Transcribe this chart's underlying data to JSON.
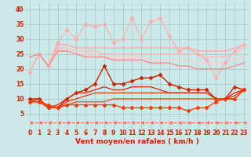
{
  "x": [
    0,
    1,
    2,
    3,
    4,
    5,
    6,
    7,
    8,
    9,
    10,
    11,
    12,
    13,
    14,
    15,
    16,
    17,
    18,
    19,
    20,
    21,
    22,
    23
  ],
  "background_color": "#cce8e8",
  "grid_color": "#aacccc",
  "xlabel": "Vent moyen/en rafales ( km/h )",
  "xlabel_color": "#cc2200",
  "xlabel_fontsize": 6.5,
  "tick_color": "#cc2200",
  "tick_fontsize": 5.5,
  "ylim": [
    0,
    42
  ],
  "yticks": [
    5,
    10,
    15,
    20,
    25,
    30,
    35,
    40
  ],
  "lines": [
    {
      "y": [
        19,
        25,
        21,
        28,
        28,
        27,
        27,
        27,
        27,
        27,
        27,
        27,
        27,
        27,
        27,
        27,
        27,
        27,
        26,
        26,
        26,
        26,
        27,
        28
      ],
      "color": "#ffaaaa",
      "lw": 1.0,
      "marker": null
    },
    {
      "y": [
        19,
        25,
        21,
        27,
        27,
        26,
        26,
        26,
        25,
        25,
        25,
        25,
        25,
        25,
        25,
        25,
        25,
        25,
        25,
        24,
        24,
        24,
        25,
        27
      ],
      "color": "#ffbbbb",
      "lw": 1.0,
      "marker": null
    },
    {
      "y": [
        19,
        25,
        21,
        26,
        26,
        25,
        25,
        25,
        24,
        24,
        24,
        24,
        24,
        23,
        23,
        23,
        23,
        23,
        22,
        22,
        22,
        22,
        23,
        24
      ],
      "color": "#ffcccc",
      "lw": 1.0,
      "marker": null
    },
    {
      "y": [
        19,
        25,
        21,
        29,
        33,
        30,
        35,
        34,
        35,
        29,
        30,
        37,
        30,
        36,
        37,
        31,
        26,
        27,
        25,
        23,
        17,
        22,
        26,
        28
      ],
      "color": "#ffaaaa",
      "lw": 0.8,
      "marker": "D",
      "markersize": 2.5
    },
    {
      "y": [
        24,
        25,
        21,
        26,
        26,
        25,
        24,
        24,
        24,
        23,
        23,
        23,
        23,
        22,
        22,
        22,
        21,
        21,
        20,
        20,
        20,
        20,
        21,
        22
      ],
      "color": "#ff8888",
      "lw": 1.0,
      "marker": null
    },
    {
      "y": [
        10,
        10,
        7,
        7,
        10,
        12,
        13,
        15,
        21,
        15,
        15,
        16,
        17,
        17,
        18,
        15,
        14,
        13,
        13,
        13,
        10,
        10,
        14,
        13
      ],
      "color": "#cc2200",
      "lw": 1.0,
      "marker": "D",
      "markersize": 2.5
    },
    {
      "y": [
        9,
        10,
        7,
        8,
        10,
        12,
        12,
        13,
        14,
        13,
        13,
        14,
        14,
        14,
        13,
        12,
        12,
        12,
        12,
        12,
        10,
        10,
        12,
        13
      ],
      "color": "#dd2200",
      "lw": 0.9,
      "marker": null
    },
    {
      "y": [
        9,
        10,
        7,
        7,
        9,
        10,
        11,
        12,
        12,
        12,
        12,
        12,
        12,
        12,
        12,
        12,
        12,
        12,
        12,
        12,
        10,
        10,
        11,
        13
      ],
      "color": "#ee3300",
      "lw": 0.9,
      "marker": null
    },
    {
      "y": [
        9,
        9,
        7,
        7,
        8,
        9,
        9,
        9,
        9,
        10,
        10,
        10,
        10,
        10,
        10,
        10,
        10,
        10,
        10,
        10,
        10,
        10,
        10,
        13
      ],
      "color": "#ff4400",
      "lw": 0.9,
      "marker": null
    },
    {
      "y": [
        2,
        2,
        2,
        2,
        2,
        2,
        2,
        2,
        2,
        2,
        2,
        2,
        2,
        2,
        2,
        2,
        2,
        2,
        2,
        2,
        2,
        2,
        2,
        2
      ],
      "color": "#ff6644",
      "lw": 0.8,
      "marker": 4,
      "markersize": 3,
      "linestyle": "--"
    },
    {
      "y": [
        9,
        9,
        8,
        7,
        8,
        8,
        8,
        8,
        8,
        8,
        7,
        7,
        7,
        7,
        7,
        7,
        7,
        6,
        7,
        7,
        9,
        10,
        10,
        13
      ],
      "color": "#ff3300",
      "lw": 0.9,
      "marker": "D",
      "markersize": 2.5
    }
  ]
}
